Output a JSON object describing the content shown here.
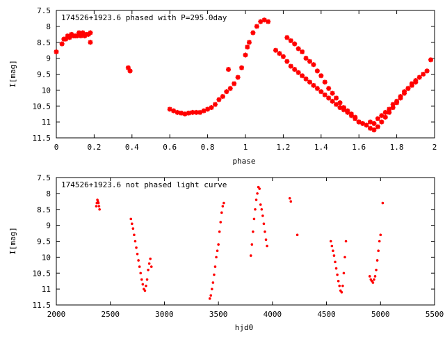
{
  "chart_data": [
    {
      "type": "scatter",
      "title": "174526+1923.6 phased with P=295.0day",
      "xlabel": "phase",
      "ylabel": "I[mag]",
      "xlim": [
        0,
        2
      ],
      "ylim": [
        11.5,
        7.5
      ],
      "y_inverted": true,
      "grid": false,
      "x_ticks": [
        "0",
        "0.2",
        "0.4",
        "0.6",
        "0.8",
        "1",
        "1.2",
        "1.4",
        "1.6",
        "1.8",
        "2"
      ],
      "x_tick_values": [
        0,
        0.2,
        0.4,
        0.6,
        0.8,
        1.0,
        1.2,
        1.4,
        1.6,
        1.8,
        2.0
      ],
      "y_ticks": [
        "7.5",
        "8",
        "8.5",
        "9",
        "9.5",
        "10",
        "10.5",
        "11",
        "11.5"
      ],
      "y_tick_values": [
        7.5,
        8,
        8.5,
        9,
        9.5,
        10,
        10.5,
        11,
        11.5
      ],
      "marker": "star",
      "color": "#ff0000",
      "series": [
        {
          "x": [
            0.0,
            0.03,
            0.04,
            0.05,
            0.06,
            0.07,
            0.08,
            0.09,
            0.1,
            0.11,
            0.12,
            0.13,
            0.14,
            0.15,
            0.16,
            0.17,
            0.18,
            0.18,
            0.38,
            0.39,
            0.6,
            0.62,
            0.64,
            0.66,
            0.68,
            0.7,
            0.72,
            0.74,
            0.76,
            0.78,
            0.8,
            0.82,
            0.84,
            0.86,
            0.88,
            0.9,
            0.91,
            0.92,
            0.94,
            0.96,
            0.98,
            1.0,
            1.01,
            1.02,
            1.04,
            1.06,
            1.08,
            1.1,
            1.12,
            1.16,
            1.18,
            1.2,
            1.22,
            1.24,
            1.26,
            1.28,
            1.3,
            1.32,
            1.34,
            1.36,
            1.38,
            1.4,
            1.42,
            1.44,
            1.46,
            1.48,
            1.5,
            1.52,
            1.54,
            1.56,
            1.58,
            1.6,
            1.22,
            1.24,
            1.26,
            1.28,
            1.3,
            1.32,
            1.34,
            1.36,
            1.38,
            1.4,
            1.42,
            1.44,
            1.46,
            1.48,
            1.5,
            1.52,
            1.54,
            1.56,
            1.58,
            1.6,
            1.62,
            1.64,
            1.66,
            1.68,
            1.7,
            1.72,
            1.74,
            1.76,
            1.78,
            1.8,
            1.82,
            1.84,
            1.86,
            1.88,
            1.9,
            1.92,
            1.94,
            1.96,
            1.98,
            1.66,
            1.68,
            1.7,
            1.72,
            1.74,
            1.76,
            1.78,
            1.8,
            1.82,
            1.84,
            1.86,
            1.88,
            1.9
          ],
          "y": [
            8.8,
            8.55,
            8.4,
            8.4,
            8.3,
            8.35,
            8.25,
            8.3,
            8.3,
            8.3,
            8.2,
            8.3,
            8.2,
            8.3,
            8.25,
            8.25,
            8.2,
            8.5,
            9.3,
            9.4,
            10.6,
            10.65,
            10.7,
            10.72,
            10.75,
            10.72,
            10.7,
            10.7,
            10.7,
            10.65,
            10.6,
            10.55,
            10.45,
            10.3,
            10.2,
            10.05,
            9.35,
            9.95,
            9.8,
            9.6,
            9.3,
            8.9,
            8.65,
            8.5,
            8.2,
            8.0,
            7.85,
            7.8,
            7.85,
            8.75,
            8.85,
            8.95,
            8.35,
            8.45,
            8.55,
            8.7,
            8.8,
            9.0,
            9.1,
            9.2,
            9.4,
            9.55,
            9.75,
            9.95,
            10.1,
            10.25,
            10.4,
            10.55,
            10.65,
            10.75,
            10.85,
            11.0,
            9.1,
            9.25,
            9.35,
            9.45,
            9.55,
            9.65,
            9.75,
            9.85,
            9.95,
            10.05,
            10.15,
            10.25,
            10.35,
            10.45,
            10.55,
            10.62,
            10.7,
            10.8,
            10.9,
            11.0,
            11.05,
            11.1,
            11.2,
            11.25,
            11.15,
            11.0,
            10.85,
            10.7,
            10.55,
            10.4,
            10.25,
            10.1,
            9.95,
            9.8,
            9.7,
            9.6,
            9.5,
            9.4,
            9.05,
            11.0,
            11.05,
            10.9,
            10.8,
            10.7,
            10.6,
            10.45,
            10.35,
            10.2,
            10.05,
            9.95,
            9.85,
            9.75
          ]
        }
      ]
    },
    {
      "type": "scatter",
      "title": "174526+1923.6 not phased light curve",
      "xlabel": "hjd0",
      "ylabel": "I[mag]",
      "xlim": [
        2000,
        5500
      ],
      "ylim": [
        11.5,
        7.5
      ],
      "y_inverted": true,
      "grid": false,
      "x_ticks": [
        "2000",
        "2500",
        "3000",
        "3500",
        "4000",
        "4500",
        "5000",
        "5500"
      ],
      "x_tick_values": [
        2000,
        2500,
        3000,
        3500,
        4000,
        4500,
        5000,
        5500
      ],
      "y_ticks": [
        "7.5",
        "8",
        "8.5",
        "9",
        "9.5",
        "10",
        "10.5",
        "11",
        "11.5"
      ],
      "y_tick_values": [
        7.5,
        8,
        8.5,
        9,
        9.5,
        10,
        10.5,
        11,
        11.5
      ],
      "marker": "dot",
      "color": "#ff0000",
      "series": [
        {
          "x": [
            2370,
            2375,
            2380,
            2385,
            2390,
            2395,
            2400,
            2690,
            2700,
            2710,
            2720,
            2730,
            2740,
            2750,
            2760,
            2770,
            2780,
            2790,
            2800,
            2810,
            2820,
            2830,
            2840,
            2850,
            2860,
            2870,
            2880,
            3420,
            3430,
            3440,
            3450,
            3460,
            3470,
            3480,
            3490,
            3500,
            3510,
            3520,
            3530,
            3540,
            3550,
            3800,
            3810,
            3820,
            3830,
            3840,
            3850,
            3860,
            3870,
            3880,
            3890,
            3900,
            3910,
            3920,
            3930,
            3940,
            3950,
            4160,
            4170,
            4230,
            4540,
            4550,
            4560,
            4570,
            4580,
            4590,
            4600,
            4610,
            4620,
            4630,
            4640,
            4650,
            4660,
            4670,
            4680,
            4900,
            4910,
            4920,
            4930,
            4940,
            4950,
            4960,
            4970,
            4980,
            4990,
            5000,
            5020
          ],
          "y": [
            8.4,
            8.3,
            8.2,
            8.25,
            8.3,
            8.4,
            8.5,
            8.8,
            8.95,
            9.1,
            9.3,
            9.5,
            9.7,
            9.9,
            10.1,
            10.3,
            10.5,
            10.7,
            10.85,
            11.0,
            11.05,
            10.9,
            10.7,
            10.4,
            10.2,
            10.05,
            10.3,
            11.3,
            11.2,
            11.0,
            10.8,
            10.55,
            10.3,
            10.0,
            9.8,
            9.6,
            9.2,
            8.9,
            8.6,
            8.4,
            8.3,
            9.95,
            9.6,
            9.2,
            8.8,
            8.5,
            8.2,
            8.0,
            7.8,
            7.85,
            8.35,
            8.5,
            8.7,
            8.95,
            9.2,
            9.45,
            9.65,
            8.15,
            8.25,
            9.3,
            9.5,
            9.65,
            9.8,
            9.95,
            10.15,
            10.35,
            10.55,
            10.75,
            10.9,
            11.05,
            11.1,
            10.9,
            10.5,
            10.0,
            9.5,
            10.6,
            10.7,
            10.75,
            10.8,
            10.7,
            10.6,
            10.4,
            10.1,
            9.8,
            9.5,
            9.3,
            8.3
          ]
        }
      ]
    }
  ]
}
